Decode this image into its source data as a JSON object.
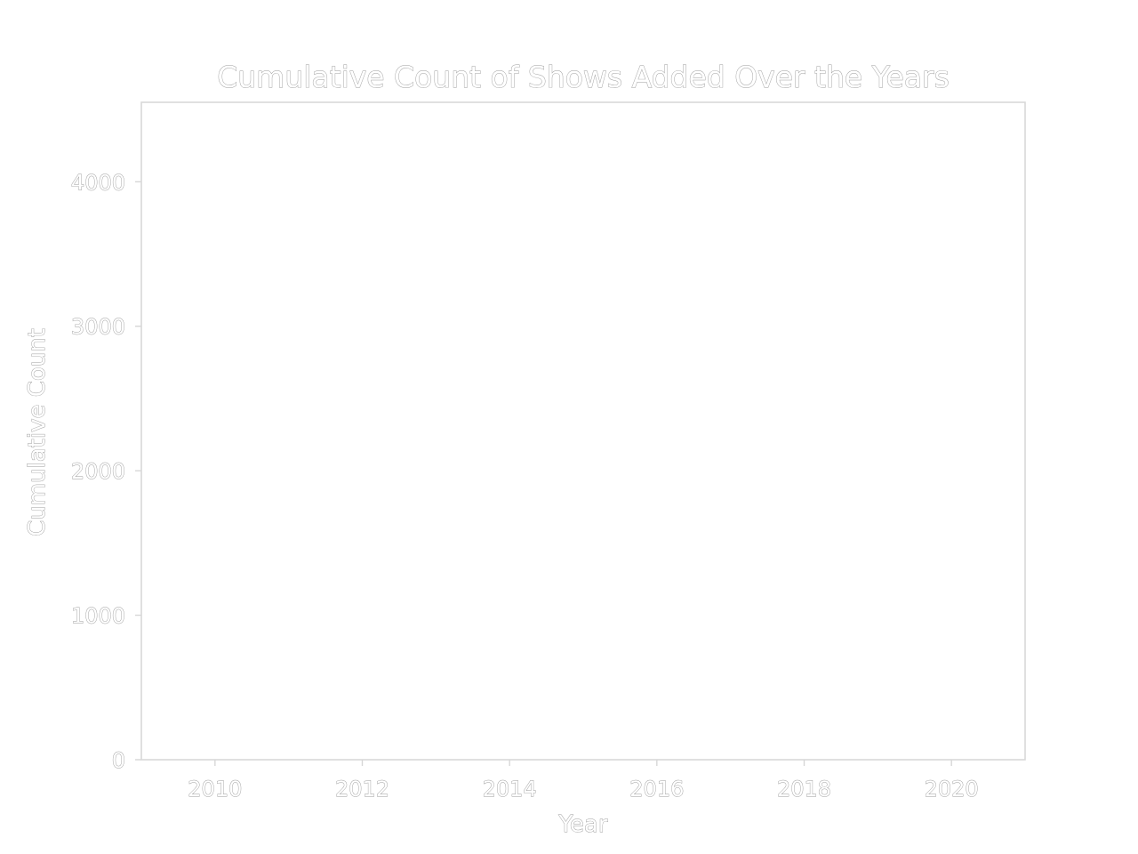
{
  "chart_data": {
    "type": "line",
    "title": "Cumulative Count of Shows Added Over the Years",
    "xlabel": "Year",
    "ylabel": "Cumulative Count",
    "xlim": [
      2009,
      2021
    ],
    "ylim": [
      0,
      4550
    ],
    "x_ticks": [
      2010,
      2012,
      2014,
      2016,
      2018,
      2020
    ],
    "y_ticks": [
      0,
      1000,
      2000,
      3000,
      4000
    ],
    "grid": false,
    "series": []
  }
}
